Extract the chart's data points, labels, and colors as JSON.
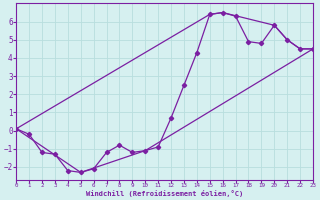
{
  "xlabel": "Windchill (Refroidissement éolien,°C)",
  "bg_color": "#d6f0f0",
  "grid_color": "#b8dede",
  "line_color": "#7b1fa2",
  "xlim": [
    0,
    23
  ],
  "ylim": [
    -2.7,
    7.0
  ],
  "xticks": [
    0,
    1,
    2,
    3,
    4,
    5,
    6,
    7,
    8,
    9,
    10,
    11,
    12,
    13,
    14,
    15,
    16,
    17,
    18,
    19,
    20,
    21,
    22,
    23
  ],
  "yticks": [
    -2,
    -1,
    0,
    1,
    2,
    3,
    4,
    5,
    6
  ],
  "series1_x": [
    0,
    1,
    2,
    3,
    4,
    5,
    6,
    7,
    8,
    9,
    10,
    11,
    12,
    13,
    14,
    15,
    16,
    17,
    18,
    19,
    20,
    21,
    22,
    23
  ],
  "series1_y": [
    0.1,
    -0.2,
    -1.2,
    -1.3,
    -2.2,
    -2.3,
    -2.1,
    -1.2,
    -0.8,
    -1.2,
    -1.1,
    -0.9,
    0.7,
    2.5,
    4.3,
    6.4,
    6.5,
    6.3,
    4.9,
    4.8,
    5.8,
    5.0,
    4.5,
    4.5
  ],
  "series2_x": [
    0,
    5,
    10,
    23
  ],
  "series2_y": [
    0.1,
    -2.3,
    -1.1,
    4.5
  ],
  "series3_x": [
    0,
    15,
    16,
    20,
    21,
    22,
    23
  ],
  "series3_y": [
    0.1,
    6.4,
    6.5,
    5.8,
    5.0,
    4.5,
    4.5
  ]
}
